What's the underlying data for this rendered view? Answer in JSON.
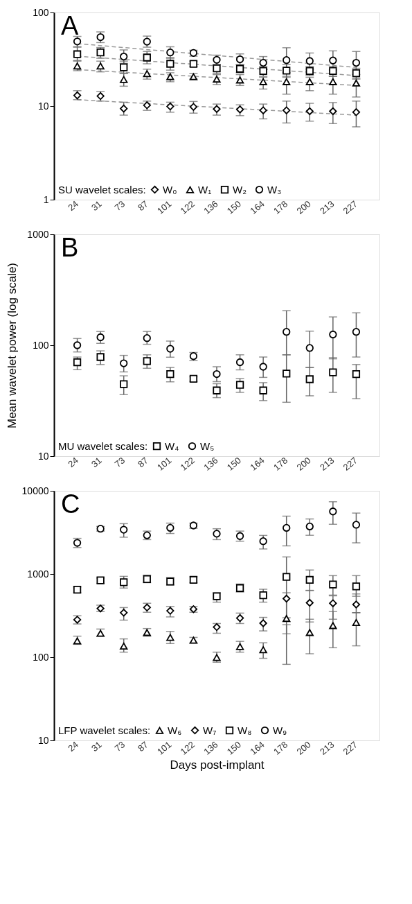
{
  "chart_data": [
    {
      "type": "scatter",
      "title": "A",
      "categories": [
        "24",
        "31",
        "73",
        "87",
        "101",
        "122",
        "136",
        "150",
        "164",
        "178",
        "200",
        "213",
        "227"
      ],
      "log": true,
      "ylim": [
        1,
        100
      ],
      "yticks": [
        1,
        10,
        100
      ],
      "legend": "bottom left",
      "legend_title": "SU wavelet scales:",
      "grid": false,
      "series": [
        {
          "name": "W₀",
          "color": "#000000",
          "marker": "diamond",
          "values": [
            13,
            12.8,
            9.4,
            10.2,
            9.9,
            9.8,
            9.3,
            9.2,
            9.0,
            9.0,
            8.8,
            8.8,
            8.6
          ],
          "errors": [
            [
              11.7,
              14.6
            ],
            [
              11.3,
              14.3
            ],
            [
              8.0,
              11.0
            ],
            [
              9.0,
              11.3
            ],
            [
              8.6,
              11.0
            ],
            [
              8.4,
              11.2
            ],
            [
              8.0,
              10.5
            ],
            [
              7.9,
              10.3
            ],
            [
              7.3,
              10.5
            ],
            [
              6.6,
              11.3
            ],
            [
              6.9,
              10.7
            ],
            [
              6.5,
              10.9
            ],
            [
              6.0,
              11.3
            ]
          ]
        },
        {
          "name": "W₁",
          "color": "#000000",
          "marker": "triangle",
          "values": [
            26.8,
            26.8,
            19.2,
            22.2,
            20.6,
            20.6,
            19.4,
            19,
            18.2,
            18.2,
            18.2,
            18.2,
            17.6
          ],
          "errors": [
            [
              23.9,
              30.2
            ],
            [
              23.2,
              30.2
            ],
            [
              16.3,
              22.2
            ],
            [
              19.4,
              24.8
            ],
            [
              18.2,
              22.7
            ],
            [
              19.4,
              22.2
            ],
            [
              17,
              21.7
            ],
            [
              16.6,
              21.7
            ],
            [
              15.2,
              20.3
            ],
            [
              13.4,
              20.8
            ],
            [
              14.6,
              20.3
            ],
            [
              13.4,
              20.8
            ],
            [
              12.5,
              19.9
            ]
          ]
        },
        {
          "name": "W₂",
          "color": "#000000",
          "marker": "square",
          "values": [
            35.8,
            37.4,
            25.9,
            33,
            28.3,
            28.2,
            25.3,
            25,
            23.7,
            23.9,
            23.7,
            23.7,
            22.4
          ],
          "errors": [
            [
              30.7,
              42.6
            ],
            [
              32.4,
              42.2
            ],
            [
              22.2,
              30.2
            ],
            [
              28.3,
              38.3
            ],
            [
              24.2,
              33
            ],
            [
              26.5,
              30.2
            ],
            [
              22.2,
              27.7
            ],
            [
              22.7,
              27.7
            ],
            [
              20.8,
              26.5
            ],
            [
              20.3,
              27.7
            ],
            [
              21.2,
              26.5
            ],
            [
              20.8,
              26.5
            ],
            [
              19.4,
              25.3
            ]
          ]
        },
        {
          "name": "W₃",
          "color": "#000000",
          "marker": "circle",
          "values": [
            49,
            54.5,
            33.8,
            48.8,
            37.4,
            37,
            31.2,
            31.6,
            29,
            31,
            30.3,
            30.7,
            29
          ],
          "errors": [
            [
              43,
              55.5
            ],
            [
              47.7,
              62
            ],
            [
              28.6,
              39.8
            ],
            [
              42.6,
              55.9
            ],
            [
              32.4,
              43
            ],
            [
              34.1,
              39.5
            ],
            [
              27.7,
              35
            ],
            [
              27.7,
              36.1
            ],
            [
              24.8,
              33.8
            ],
            [
              22.7,
              42
            ],
            [
              24.8,
              36.9
            ],
            [
              24.3,
              38.9
            ],
            [
              21.7,
              38.3
            ]
          ]
        },
        {
          "type": "line",
          "color": "#999999",
          "line_style": "dashed",
          "x": [
            "24",
            "227"
          ],
          "values": [
            11.7,
            8.0
          ]
        },
        {
          "type": "line",
          "color": "#999999",
          "line_style": "dashed",
          "x": [
            "24",
            "227"
          ],
          "values": [
            24.5,
            16.6
          ]
        },
        {
          "type": "line",
          "color": "#999999",
          "line_style": "dashed",
          "x": [
            "24",
            "227"
          ],
          "values": [
            34.1,
            21.2
          ]
        },
        {
          "type": "line",
          "color": "#999999",
          "line_style": "dashed",
          "x": [
            "24",
            "227"
          ],
          "values": [
            46.5,
            25.9
          ]
        }
      ]
    },
    {
      "type": "scatter",
      "title": "B",
      "ylabel": "Mean wavelet power (log scale)",
      "categories": [
        "24",
        "31",
        "73",
        "87",
        "101",
        "122",
        "136",
        "150",
        "164",
        "178",
        "200",
        "213",
        "227"
      ],
      "log": true,
      "ylim": [
        10,
        1000
      ],
      "yticks": [
        10,
        100,
        1000
      ],
      "legend": "bottom left",
      "legend_title": "MU wavelet scales:",
      "grid": false,
      "series": [
        {
          "name": "W₄",
          "color": "#000000",
          "marker": "square",
          "values": [
            70.3,
            78.3,
            44.6,
            72,
            55,
            49.9,
            39.1,
            44,
            39.1,
            55.6,
            49.4,
            57,
            55
          ],
          "errors": [
            [
              60.2,
              78.3
            ],
            [
              67,
              89
            ],
            [
              35.9,
              53
            ],
            [
              62,
              82
            ],
            [
              46.8,
              63
            ],
            [
              47.2,
              52
            ],
            [
              33.7,
              45
            ],
            [
              37.6,
              50
            ],
            [
              31.7,
              46
            ],
            [
              30.6,
              82
            ],
            [
              35,
              63
            ],
            [
              37.6,
              77.2
            ],
            [
              33,
              67
            ]
          ]
        },
        {
          "name": "W₅",
          "color": "#000000",
          "marker": "circle",
          "values": [
            100,
            118,
            68.7,
            116,
            93,
            79.8,
            55,
            70.3,
            64,
            132,
            94.5,
            125,
            132
          ],
          "errors": [
            [
              87,
              115
            ],
            [
              104,
              133
            ],
            [
              57.5,
              81
            ],
            [
              102,
              133
            ],
            [
              78,
              109
            ],
            [
              72.6,
              86
            ],
            [
              47,
              64
            ],
            [
              60,
              82
            ],
            [
              51.3,
              78.3
            ],
            [
              82,
              205
            ],
            [
              63,
              134
            ],
            [
              75.4,
              180
            ],
            [
              78.3,
              196
            ]
          ]
        }
      ]
    },
    {
      "type": "scatter",
      "title": "C",
      "xlabel": "Days post-implant",
      "categories": [
        "24",
        "31",
        "73",
        "87",
        "101",
        "122",
        "136",
        "150",
        "164",
        "178",
        "200",
        "213",
        "227"
      ],
      "log": true,
      "ylim": [
        10,
        10000
      ],
      "yticks": [
        10,
        100,
        1000,
        10000
      ],
      "legend": "bottom left",
      "legend_title": "LFP wavelet scales:",
      "grid": false,
      "series": [
        {
          "name": "W₆",
          "color": "#000000",
          "marker": "triangle",
          "values": [
            157,
            194,
            136,
            198,
            173,
            160,
            99,
            134,
            123,
            292,
            198,
            240,
            261
          ],
          "errors": [
            [
              143,
              179
            ],
            [
              179,
              218
            ],
            [
              115,
              166
            ],
            [
              179,
              221
            ],
            [
              146,
              204
            ],
            [
              148,
              173
            ],
            [
              87,
              115
            ],
            [
              115,
              155
            ],
            [
              97,
              149
            ],
            [
              82,
              246
            ],
            [
              110,
              286
            ],
            [
              130,
              354
            ],
            [
              137,
              343
            ]
          ]
        },
        {
          "name": "W₇",
          "color": "#000000",
          "marker": "diamond",
          "values": [
            282,
            385,
            343,
            396,
            361,
            378,
            230,
            295,
            256,
            506,
            451,
            445,
            430
          ],
          "errors": [
            [
              251,
              315
            ],
            [
              354,
              422
            ],
            [
              279,
              395
            ],
            [
              347,
              445
            ],
            [
              305,
              408
            ],
            [
              347,
              408
            ],
            [
              194,
              254
            ],
            [
              254,
              339
            ],
            [
              207,
              301
            ],
            [
              191,
              595
            ],
            [
              265,
              635
            ],
            [
              286,
              547
            ],
            [
              343,
              576
            ]
          ]
        },
        {
          "name": "W₈",
          "color": "#000000",
          "marker": "square",
          "values": [
            647,
            840,
            797,
            867,
            813,
            850,
            540,
            678,
            555,
            925,
            850,
            747,
            709
          ],
          "errors": [
            [
              595,
              700
            ],
            [
              771,
              895
            ],
            [
              678,
              937
            ],
            [
              787,
              968
            ],
            [
              737,
              907
            ],
            [
              787,
              925
            ],
            [
              459,
              595
            ],
            [
              607,
              757
            ],
            [
              459,
              656
            ],
            [
              298,
              1605
            ],
            [
              635,
              1117
            ],
            [
              558,
              956
            ],
            [
              540,
              956
            ]
          ]
        },
        {
          "name": "W₉",
          "color": "#000000",
          "marker": "circle",
          "values": [
            2370,
            3500,
            3410,
            2920,
            3590,
            3830,
            3050,
            2860,
            2480,
            3590,
            3730,
            5650,
            3910
          ],
          "errors": [
            [
              2080,
              2680
            ],
            [
              3280,
              3730
            ],
            [
              2770,
              4030
            ],
            [
              2590,
              3280
            ],
            [
              3070,
              4090
            ],
            [
              3540,
              4090
            ],
            [
              2590,
              3500
            ],
            [
              2480,
              3280
            ],
            [
              2000,
              2910
            ],
            [
              2180,
              4960
            ],
            [
              2920,
              4590
            ],
            [
              3960,
              7390
            ],
            [
              2370,
              5400
            ]
          ]
        }
      ]
    }
  ]
}
